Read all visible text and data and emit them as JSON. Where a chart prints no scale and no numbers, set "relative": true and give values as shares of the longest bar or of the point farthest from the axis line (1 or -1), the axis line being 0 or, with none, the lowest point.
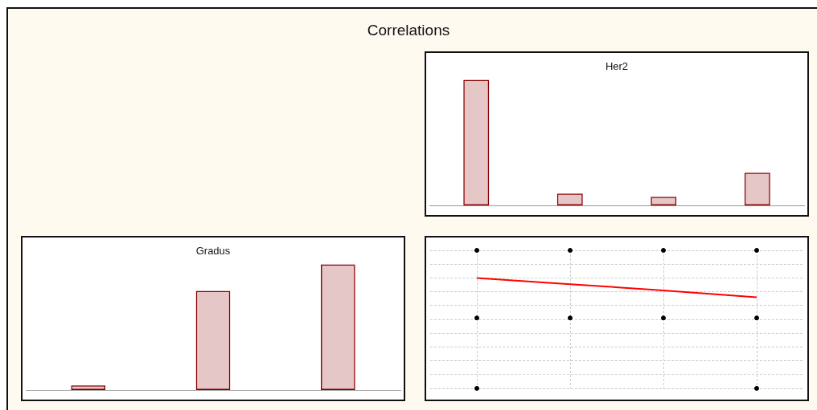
{
  "chart_data": [
    {
      "type": "bar",
      "title": "Her2",
      "annotations": [
        "Correlations"
      ],
      "categories": [
        null,
        null,
        null,
        null
      ],
      "values": [
        1,
        0.095,
        0.068,
        0.26
      ],
      "color": "#8b0000",
      "relative": true
    },
    {
      "type": "bar",
      "title": "Gradus",
      "categories": [
        null,
        null,
        null
      ],
      "values": [
        0.036,
        0.79,
        1
      ],
      "color": "#8b0000",
      "relative": true
    },
    {
      "type": "scatter",
      "relative": true,
      "grid": true,
      "marker": "circle",
      "categories": [
        null,
        null,
        null,
        null
      ],
      "series": [
        {
          "color": "#000000",
          "values": [
            1,
            1,
            1,
            1
          ]
        },
        {
          "color": "#000000",
          "values": [
            0.51,
            0.51,
            0.51,
            0.51
          ]
        },
        {
          "color": "#000000",
          "values": [
            0,
            null,
            null,
            0
          ]
        },
        {
          "type": "line",
          "color": "#ff0000",
          "marker": "none",
          "values": [
            0.8,
            0.755,
            0.71,
            0.66
          ]
        }
      ]
    }
  ]
}
